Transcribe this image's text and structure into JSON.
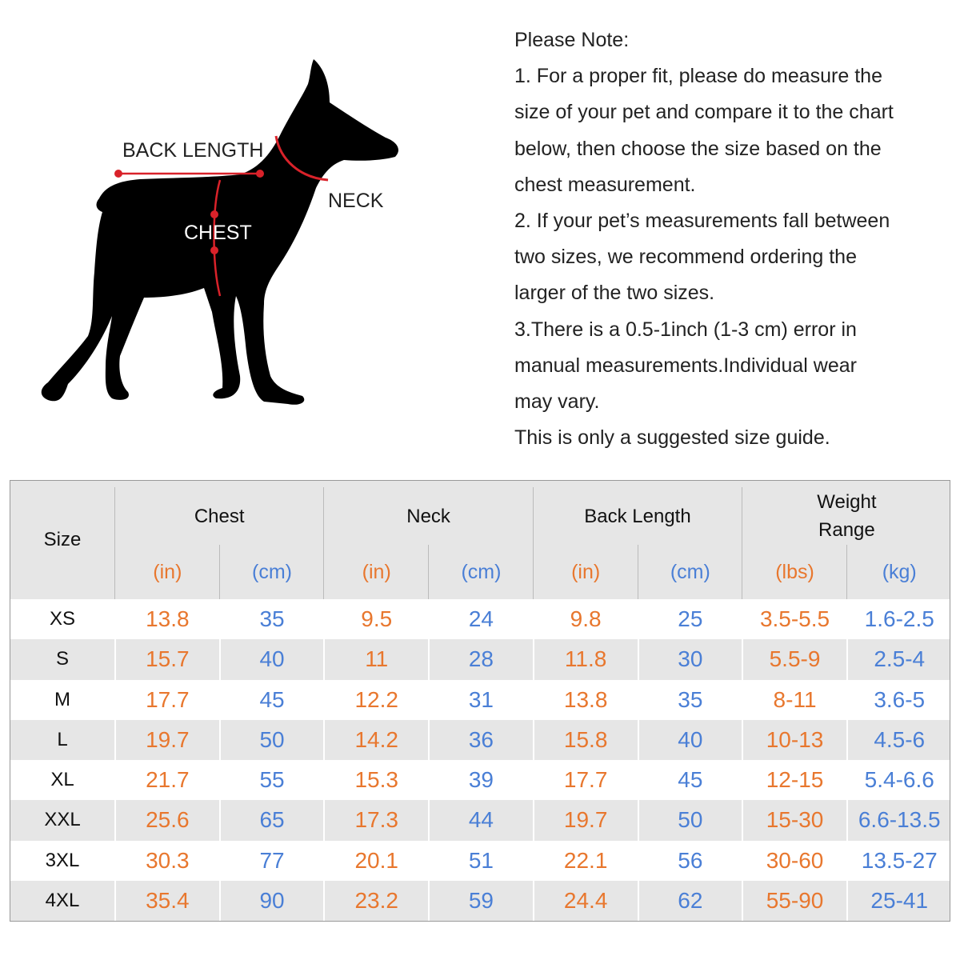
{
  "diagram": {
    "labels": {
      "back_length": "BACK LENGTH",
      "neck": "NECK",
      "chest": "CHEST"
    }
  },
  "notes": {
    "heading": "Please Note:",
    "lines": [
      "1. For a proper fit, please do measure the",
      "size of your pet and compare it to the chart",
      "below, then choose the size based on the",
      "chest measurement.",
      "2. If your pet’s measurements fall between",
      "two sizes, we recommend ordering the",
      "larger of the two sizes.",
      "3.There is a 0.5-1inch (1-3 cm) error in",
      "manual measurements.Individual wear",
      "may vary.",
      "This is only a suggested size guide."
    ]
  },
  "table": {
    "size_header": "Size",
    "groups": [
      "Chest",
      "Neck",
      "Back Length",
      "Weight Range"
    ],
    "units": [
      "(in)",
      "(cm)",
      "(in)",
      "(cm)",
      "(in)",
      "(cm)",
      "(lbs)",
      "(kg)"
    ],
    "rows": [
      [
        "XS",
        "13.8",
        "35",
        "9.5",
        "24",
        "9.8",
        "25",
        "3.5-5.5",
        "1.6-2.5"
      ],
      [
        "S",
        "15.7",
        "40",
        "11",
        "28",
        "11.8",
        "30",
        "5.5-9",
        "2.5-4"
      ],
      [
        "M",
        "17.7",
        "45",
        "12.2",
        "31",
        "13.8",
        "35",
        "8-11",
        "3.6-5"
      ],
      [
        "L",
        "19.7",
        "50",
        "14.2",
        "36",
        "15.8",
        "40",
        "10-13",
        "4.5-6"
      ],
      [
        "XL",
        "21.7",
        "55",
        "15.3",
        "39",
        "17.7",
        "45",
        "12-15",
        "5.4-6.6"
      ],
      [
        "XXL",
        "25.6",
        "65",
        "17.3",
        "44",
        "19.7",
        "50",
        "15-30",
        "6.6-13.5"
      ],
      [
        "3XL",
        "30.3",
        "77",
        "20.1",
        "51",
        "22.1",
        "56",
        "30-60",
        "13.5-27"
      ],
      [
        "4XL",
        "35.4",
        "90",
        "23.2",
        "59",
        "24.4",
        "62",
        "55-90",
        "25-41"
      ]
    ]
  }
}
